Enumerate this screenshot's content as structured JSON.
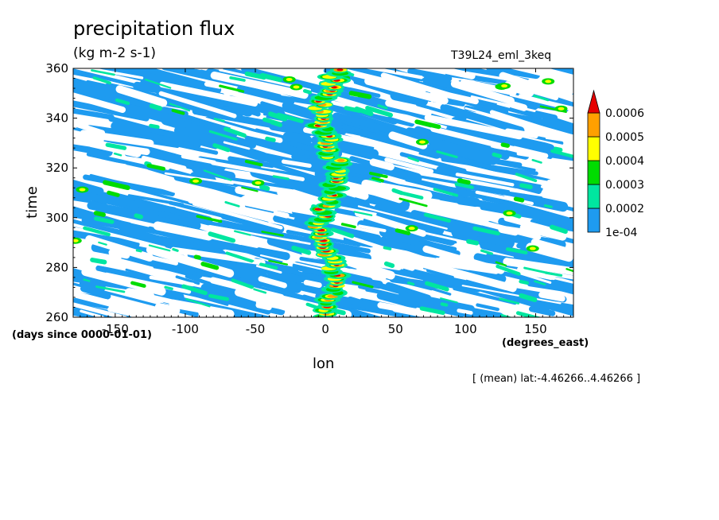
{
  "chart_data": {
    "type": "heatmap",
    "title": "precipitation flux",
    "units": "(kg m-2 s-1)",
    "run_label": "T39L24_eml_3keq",
    "xlabel": "lon",
    "x_units": "(degrees_east)",
    "ylabel": "time",
    "y_units": "(days since 0000-01-01)",
    "averaging_note": "[ (mean) lat:-4.46266..4.46266 ]",
    "xlim": [
      -180,
      177
    ],
    "ylim": [
      260,
      360
    ],
    "x_ticks": [
      "-150",
      "-100",
      "-50",
      "0",
      "50",
      "100",
      "150"
    ],
    "y_ticks": [
      "260",
      "280",
      "300",
      "320",
      "340",
      "360"
    ],
    "colorbar": {
      "levels": [
        "1e-04",
        "0.0002",
        "0.0003",
        "0.0004",
        "0.0005",
        "0.0006"
      ],
      "colors": [
        "#ffffff",
        "#1e9bf0",
        "#00e6a0",
        "#00dc00",
        "#ffff00",
        "#ffa000",
        "#e60000"
      ],
      "extend": "max"
    },
    "pattern_description": "eastward-propagating bands of precipitation with a strong convective column near lon 0"
  }
}
